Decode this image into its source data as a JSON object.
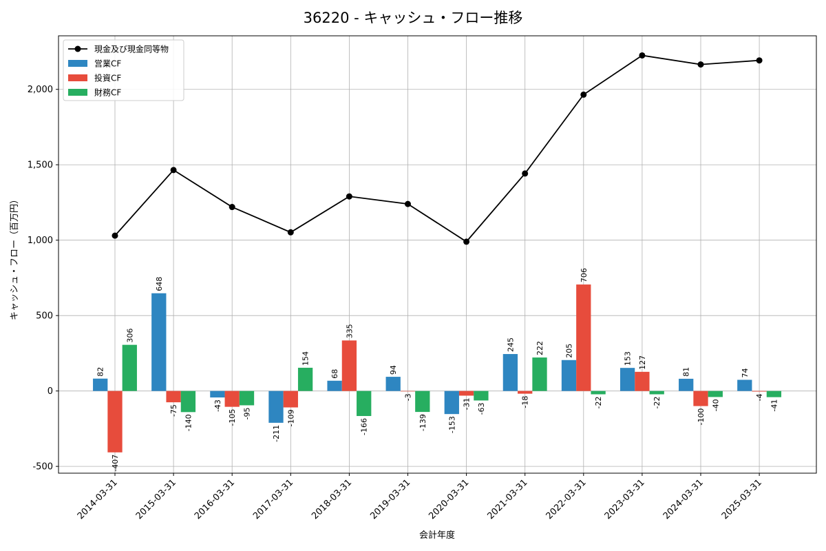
{
  "chart_data": {
    "type": "bar+line",
    "title": "36220 - キャッシュ・フロー推移",
    "xlabel": "会計年度",
    "ylabel": "キャッシュ・フロー（百万円）",
    "ylim": [
      -545,
      2355
    ],
    "yticks": [
      -500,
      0,
      500,
      1000,
      1500,
      2000
    ],
    "ytick_labels": [
      "-500",
      "0",
      "500",
      "1,000",
      "1,500",
      "2,000"
    ],
    "grid": true,
    "legend_position": "top-left",
    "categories": [
      "2014-03-31",
      "2015-03-31",
      "2016-03-31",
      "2017-03-31",
      "2018-03-31",
      "2019-03-31",
      "2020-03-31",
      "2021-03-31",
      "2022-03-31",
      "2023-03-31",
      "2024-03-31",
      "2025-03-31"
    ],
    "series": [
      {
        "name": "営業CF",
        "kind": "bar",
        "color": "#2e86c1",
        "values": [
          82,
          648,
          -43,
          -211,
          68,
          94,
          -153,
          245,
          205,
          153,
          81,
          74
        ]
      },
      {
        "name": "投資CF",
        "kind": "bar",
        "color": "#e74c3c",
        "values": [
          -407,
          -75,
          -105,
          -109,
          335,
          -3,
          -31,
          -18,
          706,
          127,
          -100,
          -4
        ]
      },
      {
        "name": "財務CF",
        "kind": "bar",
        "color": "#27ae60",
        "values": [
          306,
          -140,
          -95,
          154,
          -166,
          -139,
          -63,
          222,
          -22,
          -22,
          -40,
          -41
        ]
      },
      {
        "name": "現金及び現金同等物",
        "kind": "line",
        "color": "#000000",
        "values": [
          1030,
          1465,
          1220,
          1052,
          1290,
          1240,
          990,
          1442,
          1965,
          2225,
          2165,
          2192
        ]
      }
    ]
  }
}
